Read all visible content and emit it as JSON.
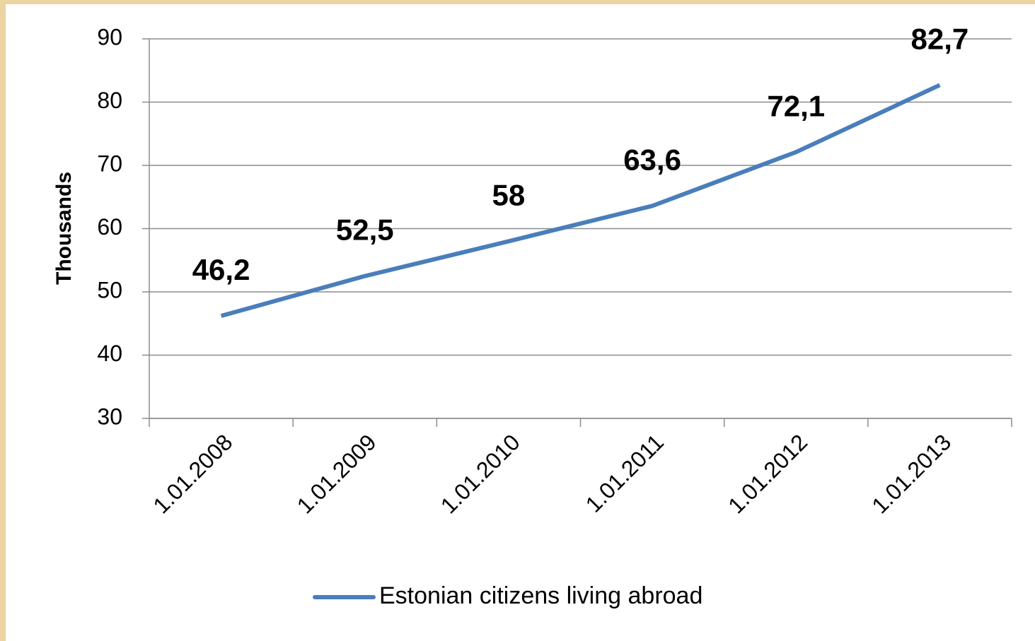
{
  "chart_data": {
    "type": "line",
    "y_axis_label": "Thousands",
    "categories": [
      "1.01.2008",
      "1.01.2009",
      "1.01.2010",
      "1.01.2011",
      "1.01.2012",
      "1.01.2013"
    ],
    "series": [
      {
        "name": "Estonian citizens living abroad",
        "color": "#4a7ebb",
        "values": [
          46.2,
          52.5,
          58,
          63.6,
          72.1,
          82.7
        ],
        "value_labels": [
          "46,2",
          "52,5",
          "58",
          "63,6",
          "72,1",
          "82,7"
        ]
      }
    ],
    "ylim": [
      30,
      90
    ],
    "yticks": [
      30,
      40,
      50,
      60,
      70,
      80,
      90
    ],
    "grid": true,
    "legend": "bottom"
  }
}
